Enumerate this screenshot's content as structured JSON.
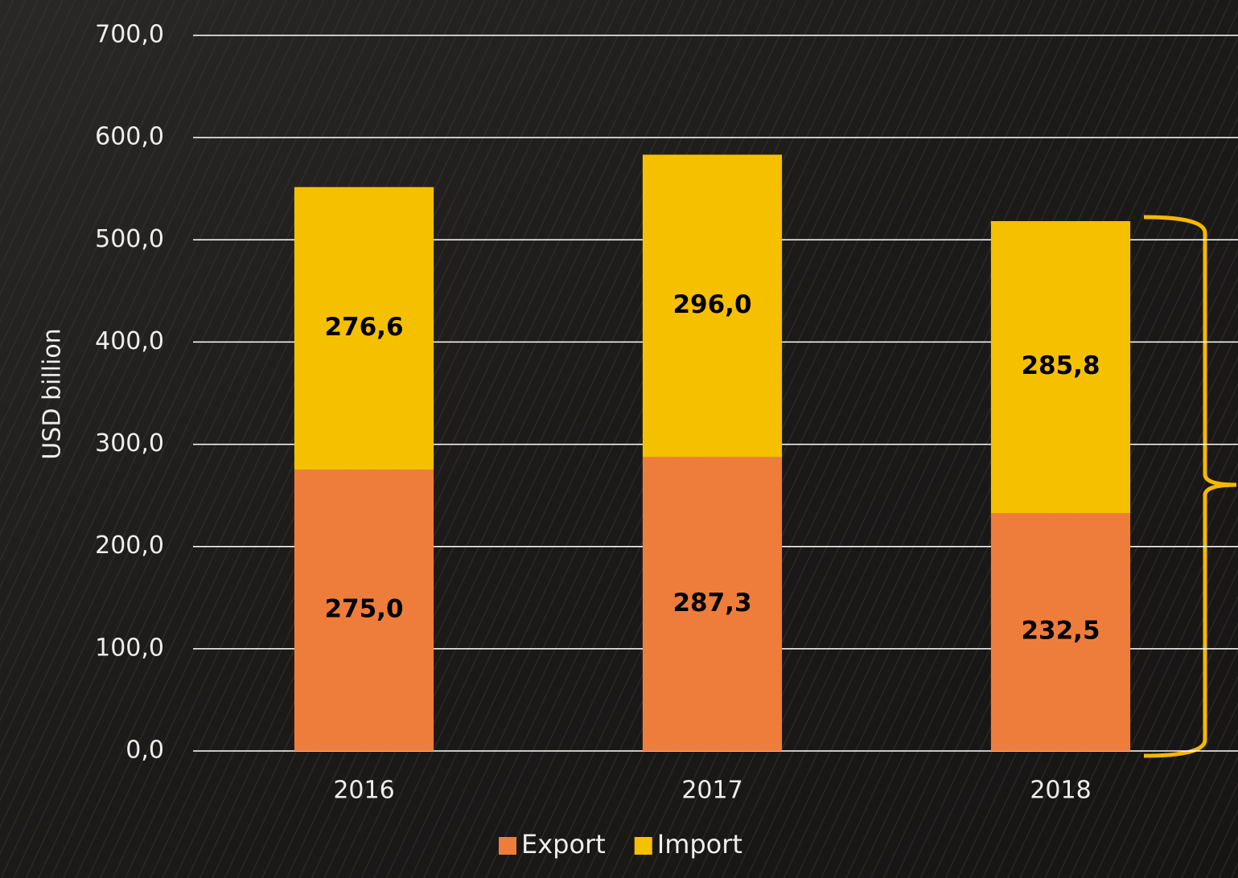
{
  "chart_data": {
    "type": "stacked-bar",
    "y_label": "USD billion",
    "categories": [
      "2016",
      "2017",
      "2018"
    ],
    "series": [
      {
        "name": "Export",
        "color": "#ee7d3c",
        "values": [
          275.0,
          287.3,
          232.5
        ],
        "value_labels": [
          "275,0",
          "287,3",
          "232,5"
        ]
      },
      {
        "name": "Import",
        "color": "#f5c000",
        "values": [
          276.6,
          296.0,
          285.8
        ],
        "value_labels": [
          "276,6",
          "296,0",
          "285,8"
        ]
      }
    ],
    "ylim": [
      0,
      700
    ],
    "yticks": [
      {
        "value": 0,
        "label": "0,0"
      },
      {
        "value": 100,
        "label": "100,0"
      },
      {
        "value": 200,
        "label": "200,0"
      },
      {
        "value": 300,
        "label": "300,0"
      },
      {
        "value": 400,
        "label": "400,0"
      },
      {
        "value": 500,
        "label": "500,0"
      },
      {
        "value": 600,
        "label": "600,0"
      },
      {
        "value": 700,
        "label": "700,0"
      }
    ],
    "grid": true,
    "legend": "bottom"
  }
}
